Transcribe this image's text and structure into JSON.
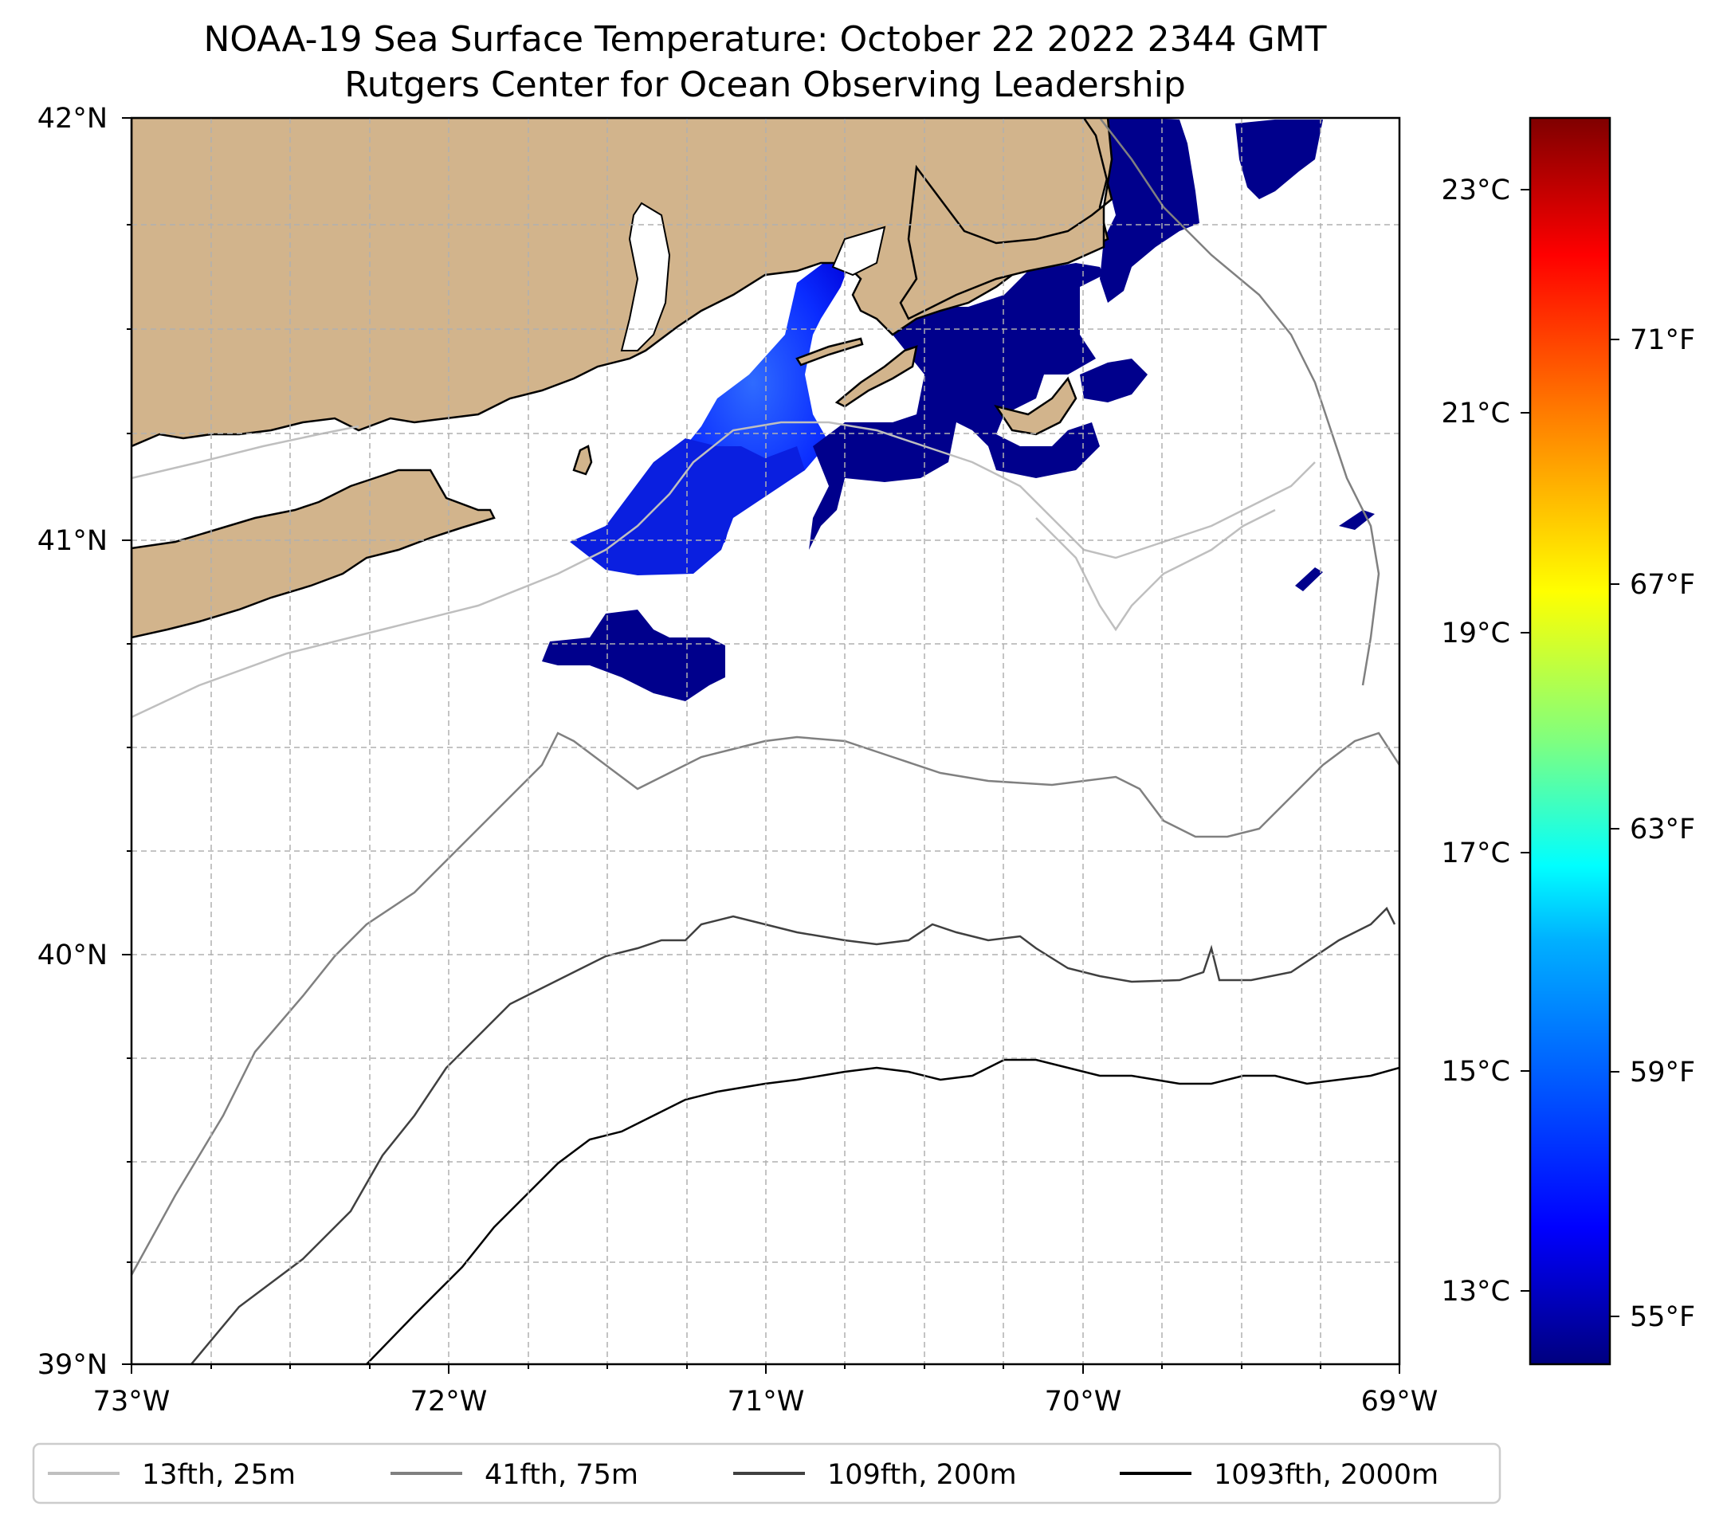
{
  "title": {
    "line1": "NOAA-19 Sea Surface Temperature: October 22 2022 2344 GMT",
    "line2": "Rutgers Center for Ocean Observing Leadership"
  },
  "map": {
    "lon_range": [
      -73,
      -69
    ],
    "lat_range": [
      39,
      42
    ],
    "lon_ticks": [
      "73°W",
      "72°W",
      "71°W",
      "70°W",
      "69°W"
    ],
    "lat_ticks": [
      "39°N",
      "40°N",
      "41°N",
      "42°N"
    ],
    "gridlines": true,
    "land_color": "#d2b48c",
    "coastline_color": "#000000",
    "sst_colormap": "jet"
  },
  "colorbar": {
    "celsius_ticks": [
      "13°C",
      "15°C",
      "17°C",
      "19°C",
      "21°C",
      "23°C"
    ],
    "fahrenheit_ticks": [
      "55°F",
      "59°F",
      "63°F",
      "67°F",
      "71°F"
    ],
    "range_c": [
      12.0,
      23.7
    ],
    "colors": [
      "#00007f",
      "#0000ff",
      "#007fff",
      "#00ffff",
      "#7fff7f",
      "#ffff00",
      "#ff7f00",
      "#ff0000",
      "#7f0000"
    ]
  },
  "legend": {
    "placement": "bottom",
    "items": [
      {
        "label": "13fth, 25m",
        "color": "#bfbfbf"
      },
      {
        "label": "41fth, 75m",
        "color": "#808080"
      },
      {
        "label": "109fth, 200m",
        "color": "#404040"
      },
      {
        "label": "1093fth, 2000m",
        "color": "#000000"
      }
    ]
  }
}
